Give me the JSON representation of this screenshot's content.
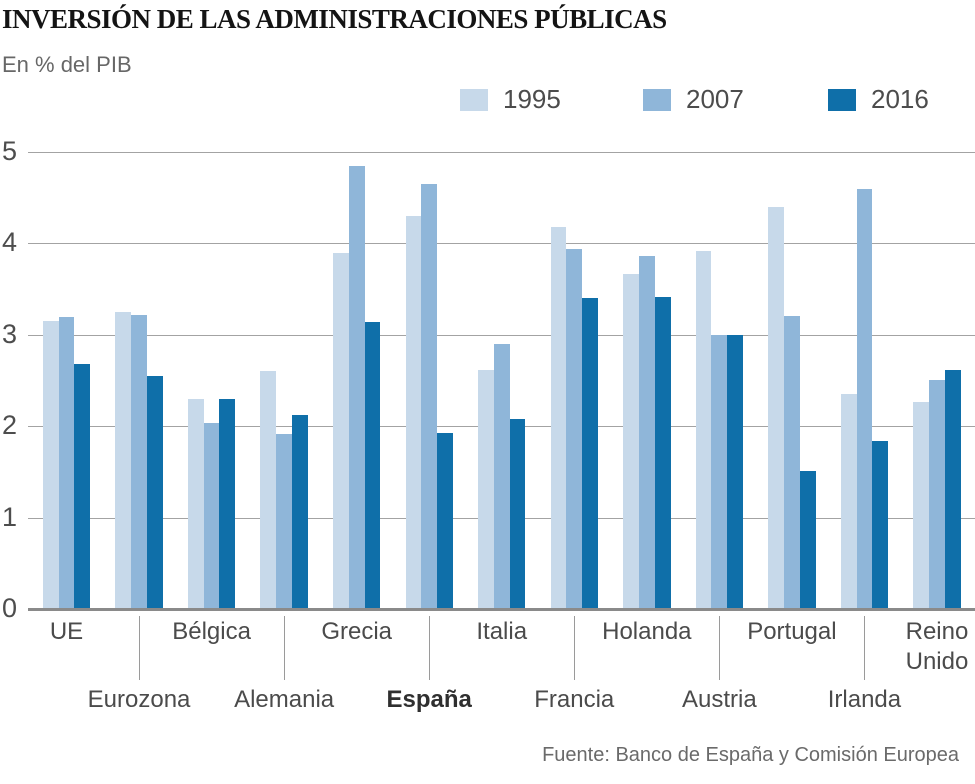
{
  "header": {
    "title": "INVERSIÓN DE LAS ADMINISTRACIONES PÚBLICAS",
    "subtitle": "En % del PIB"
  },
  "source": "Fuente: Banco de España y Comisión Europea",
  "chart_data": {
    "type": "bar",
    "title": "Inversión de las administraciones públicas",
    "ylabel": "En % del PIB",
    "xlabel": "",
    "ylim": [
      0,
      5
    ],
    "y_ticks": [
      0,
      1,
      2,
      3,
      4,
      5
    ],
    "grid": "horizontal",
    "legend_position": "top-right",
    "emphasis_category": "España",
    "categories": [
      "UE",
      "Eurozona",
      "Bélgica",
      "Alemania",
      "Grecia",
      "España",
      "Italia",
      "Francia",
      "Holanda",
      "Austria",
      "Portugal",
      "Irlanda",
      "Reino Unido"
    ],
    "series": [
      {
        "name": "1995",
        "color": "#c7d9ea",
        "values": [
          3.15,
          3.25,
          2.3,
          2.6,
          3.9,
          4.3,
          2.62,
          4.18,
          3.67,
          3.92,
          4.4,
          2.35,
          2.26
        ]
      },
      {
        "name": "2007",
        "color": "#8fb6d9",
        "values": [
          3.2,
          3.22,
          2.03,
          1.92,
          4.85,
          4.65,
          2.9,
          3.94,
          3.86,
          3.0,
          3.21,
          4.6,
          2.51
        ]
      },
      {
        "name": "2016",
        "color": "#0f6fa9",
        "values": [
          2.68,
          2.55,
          2.3,
          2.12,
          3.14,
          1.93,
          2.08,
          3.4,
          3.41,
          3.0,
          1.51,
          1.84,
          2.62
        ]
      }
    ]
  }
}
